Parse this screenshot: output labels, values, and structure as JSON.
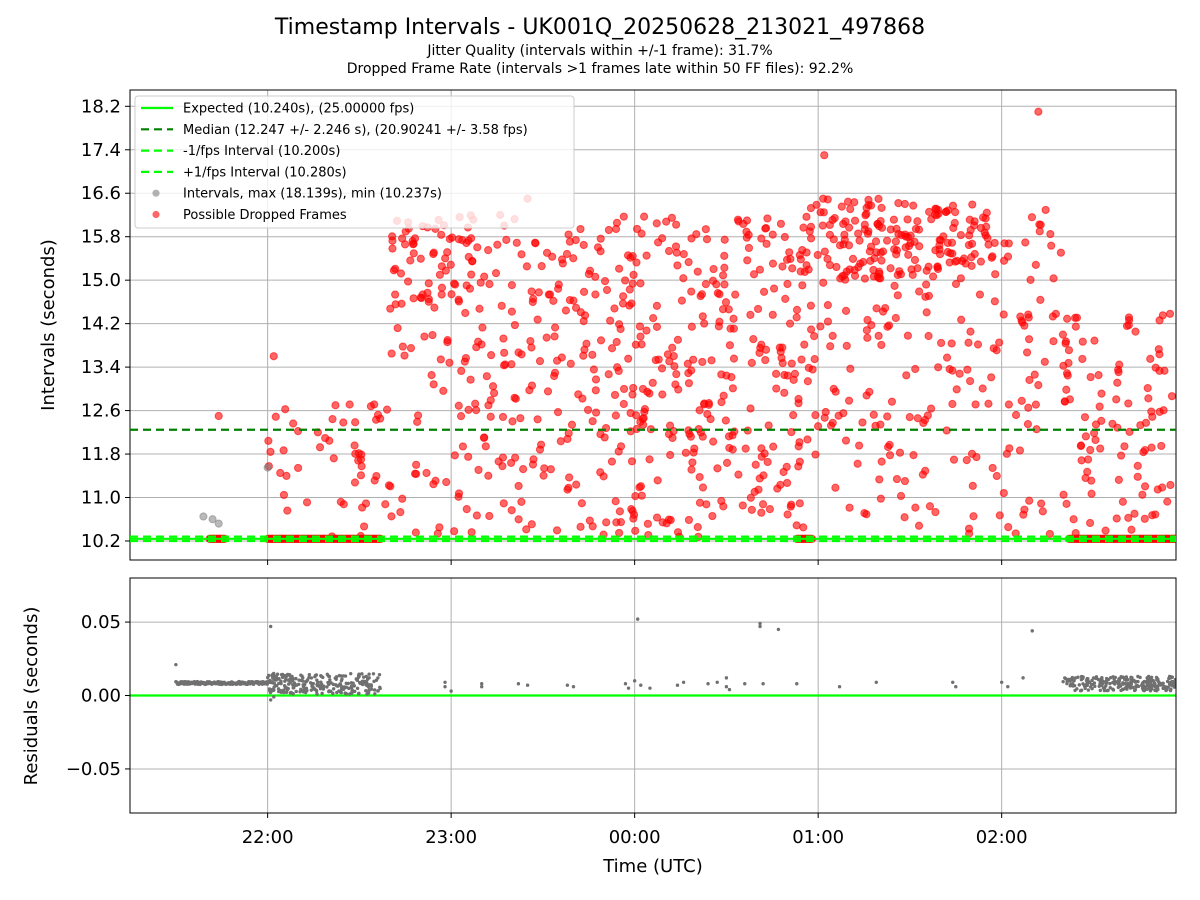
{
  "title": "Timestamp Intervals - UK001Q_20250628_213021_497868",
  "subtitle_1": "Jitter Quality (intervals within +/-1 frame): 31.7%",
  "subtitle_2": "Dropped Frame Rate (intervals >1 frames late within 50 FF files): 92.2%",
  "colors": {
    "expected": "#00ff00",
    "median": "#008000",
    "bounds": "#00ff00",
    "intervals": "#808080",
    "dropped": "#ff0000",
    "grid": "#b0b0b0",
    "residual_points": "#707070"
  },
  "chart_data": [
    {
      "type": "scatter",
      "panel": "top",
      "ylabel": "Intervals (seconds)",
      "xlabel": "",
      "ylim": [
        9.85,
        18.5
      ],
      "yticks": [
        "10.2",
        "11.0",
        "11.8",
        "12.6",
        "13.4",
        "14.2",
        "15.0",
        "15.8",
        "16.6",
        "17.4",
        "18.2"
      ],
      "grid": true,
      "legend_placement": "upper-left",
      "lines": {
        "expected": 10.24,
        "median": 12.247,
        "lower_bound": 10.2,
        "upper_bound": 10.28
      },
      "legend": [
        {
          "label": "Expected (10.240s), (25.00000 fps)",
          "kind": "solid-line",
          "color": "#00ff00"
        },
        {
          "label": "Median (12.247 +/- 2.246 s), (20.90241 +/- 3.58 fps)",
          "kind": "dashed-line",
          "color": "#008000"
        },
        {
          "label": "-1/fps Interval (10.200s)",
          "kind": "dashed-line",
          "color": "#00ff00"
        },
        {
          "label": "+1/fps Interval (10.280s)",
          "kind": "dashed-line",
          "color": "#00ff00"
        },
        {
          "label": "Intervals, max (18.139s), min (10.237s)",
          "kind": "dot",
          "color": "#808080"
        },
        {
          "label": "Possible Dropped Frames",
          "kind": "dot",
          "color": "#ff0000"
        }
      ],
      "stats": {
        "max_interval": 18.139,
        "min_interval": 10.237
      },
      "series_note_gray_points": [
        {
          "x": "21:39",
          "y": 10.65
        },
        {
          "x": "21:42",
          "y": 10.6
        },
        {
          "x": "21:44",
          "y": 10.52
        },
        {
          "x": "22:00",
          "y": 11.55
        }
      ]
    },
    {
      "type": "scatter",
      "panel": "bottom",
      "ylabel": "Residuals (seconds)",
      "xlabel": "Time (UTC)",
      "ylim": [
        -0.08,
        0.08
      ],
      "yticks": [
        "−0.05",
        "0.00",
        "0.05"
      ],
      "zero_line": 0.0,
      "grid": true,
      "outliers": [
        {
          "x": "21:30",
          "y": 0.021
        },
        {
          "x": "22:01",
          "y": 0.047
        },
        {
          "x": "00:01",
          "y": 0.052
        },
        {
          "x": "00:41",
          "y": 0.049
        },
        {
          "x": "00:41",
          "y": 0.047
        },
        {
          "x": "00:47",
          "y": 0.045
        },
        {
          "x": "02:10",
          "y": 0.044
        }
      ]
    }
  ],
  "x_axis": {
    "type": "time",
    "range": [
      "21:15",
      "02:57"
    ],
    "ticks": [
      "22:00",
      "23:00",
      "00:00",
      "01:00",
      "02:00"
    ]
  }
}
